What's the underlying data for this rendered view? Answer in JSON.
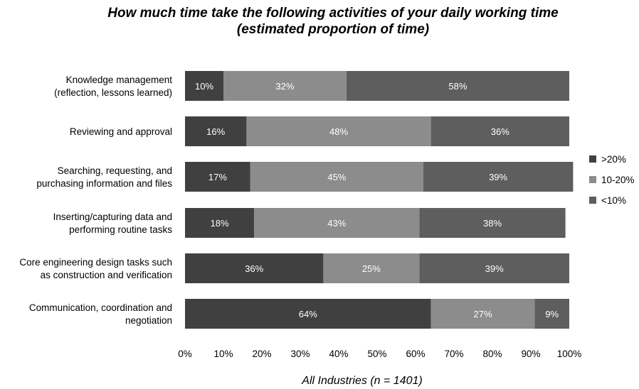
{
  "chart_data": {
    "type": "bar",
    "orientation": "horizontal",
    "stacked": true,
    "title_lines": [
      "How much time take the following activities of your daily working time",
      "(estimated proportion of time)"
    ],
    "xlabel": "All Industries (n = 1401)",
    "xlim": [
      0,
      100
    ],
    "x_ticks": [
      "0%",
      "10%",
      "20%",
      "30%",
      "40%",
      "50%",
      "60%",
      "70%",
      "80%",
      "90%",
      "100%"
    ],
    "legend_position": "right",
    "categories": [
      [
        "Knowledge management",
        "(reflection, lessons learned)"
      ],
      [
        "Reviewing and approval"
      ],
      [
        "Searching, requesting, and",
        "purchasing information and files"
      ],
      [
        "Inserting/capturing data and",
        "performing routine tasks"
      ],
      [
        "Core engineering design tasks such",
        "as construction and verification"
      ],
      [
        "Communication, coordination and",
        "negotiation"
      ]
    ],
    "series": [
      {
        "name": ">20%",
        "color": "#404040",
        "values": [
          10,
          16,
          17,
          18,
          36,
          64
        ],
        "labels": [
          "10%",
          "16%",
          "17%",
          "18%",
          "36%",
          "64%"
        ]
      },
      {
        "name": "10-20%",
        "color": "#8c8c8c",
        "values": [
          32,
          48,
          45,
          43,
          25,
          27
        ],
        "labels": [
          "32%",
          "48%",
          "45%",
          "43%",
          "25%",
          "27%"
        ]
      },
      {
        "name": "<10%",
        "color": "#5e5e5e",
        "values": [
          58,
          36,
          39,
          38,
          39,
          9
        ],
        "labels": [
          "58%",
          "36%",
          "39%",
          "38%",
          "39%",
          "9%"
        ]
      }
    ]
  }
}
